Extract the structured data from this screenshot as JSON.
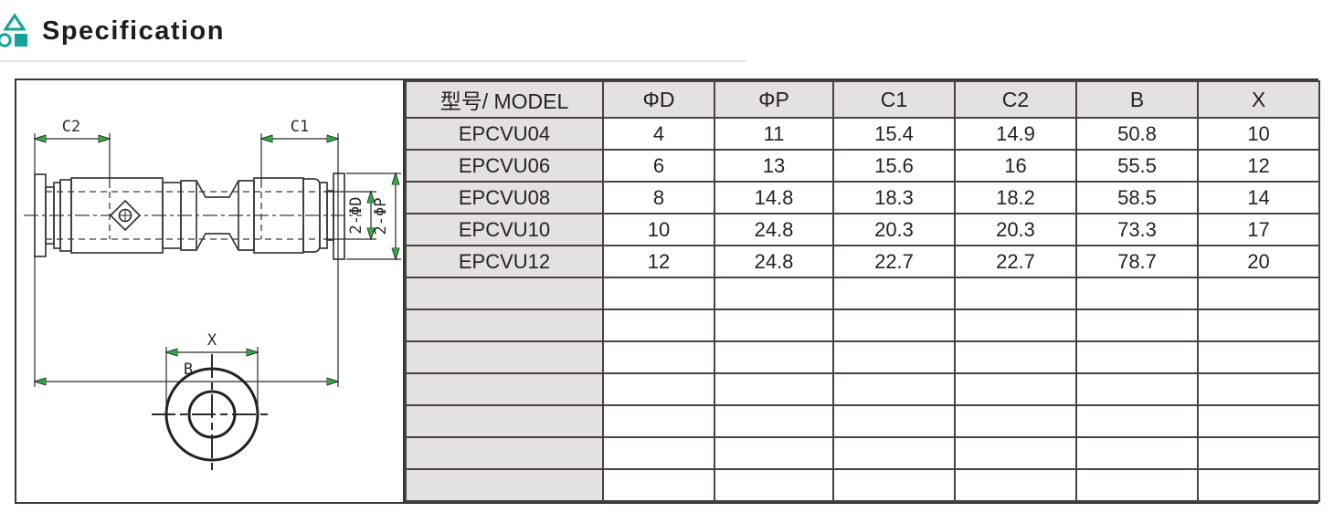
{
  "header": {
    "title": "Specification",
    "icon": "shapes-icon",
    "accent_color": "#14a39a"
  },
  "table": {
    "columns": [
      "型号/ MODEL",
      "ΦD",
      "ΦP",
      "C1",
      "C2",
      "B",
      "X"
    ],
    "rows": [
      {
        "model": "EPCVU04",
        "phi_d": "4",
        "phi_p": "11",
        "c1": "15.4",
        "c2": "14.9",
        "b": "50.8",
        "x": "10"
      },
      {
        "model": "EPCVU06",
        "phi_d": "6",
        "phi_p": "13",
        "c1": "15.6",
        "c2": "16",
        "b": "55.5",
        "x": "12"
      },
      {
        "model": "EPCVU08",
        "phi_d": "8",
        "phi_p": "14.8",
        "c1": "18.3",
        "c2": "18.2",
        "b": "58.5",
        "x": "14"
      },
      {
        "model": "EPCVU10",
        "phi_d": "10",
        "phi_p": "24.8",
        "c1": "20.3",
        "c2": "20.3",
        "b": "73.3",
        "x": "17"
      },
      {
        "model": "EPCVU12",
        "phi_d": "12",
        "phi_p": "24.8",
        "c1": "22.7",
        "c2": "22.7",
        "b": "78.7",
        "x": "20"
      }
    ],
    "empty_row_count": 7
  },
  "drawing": {
    "dim_c2": "C2",
    "dim_c1": "C1",
    "dim_b": "B",
    "dim_x": "X",
    "dim_2phid": "2-ΦD",
    "dim_2phip": "2-ΦP",
    "line_color": "#3a3a3a",
    "arrow_color": "#2fa843"
  }
}
